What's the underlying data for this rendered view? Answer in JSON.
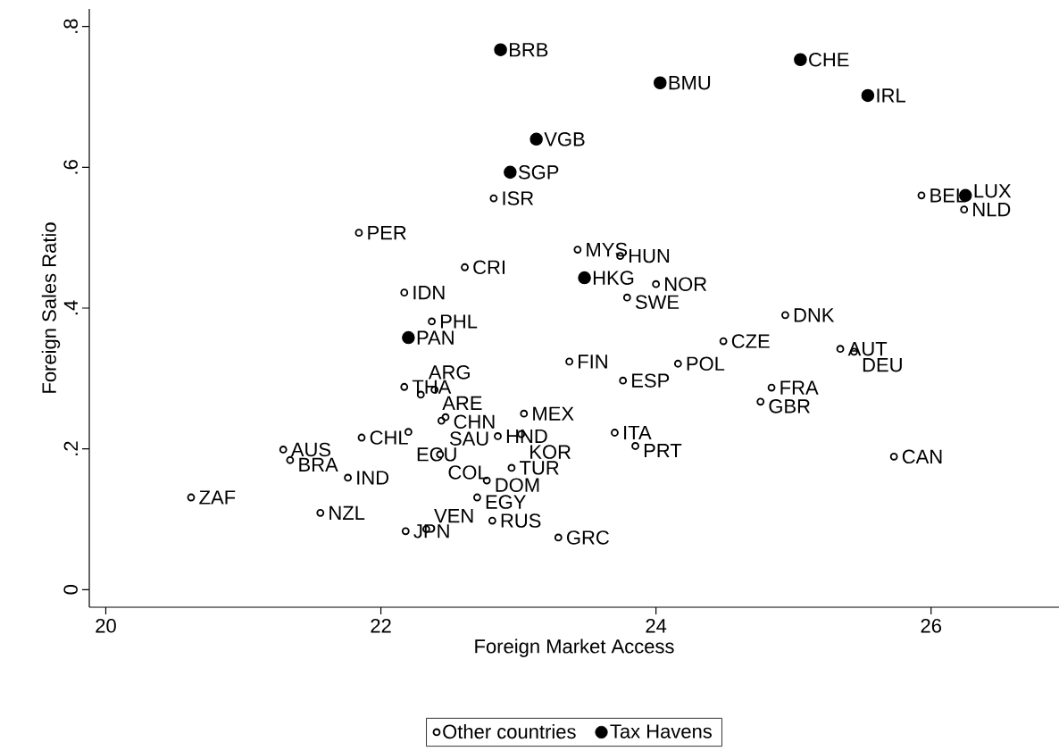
{
  "chart_data": {
    "type": "scatter",
    "xlabel": "Foreign Market Access",
    "ylabel": "Foreign Sales Ratio",
    "xlim": [
      19.88,
      26.93
    ],
    "ylim": [
      -0.025,
      0.825
    ],
    "xticks": [
      20,
      22,
      24,
      26
    ],
    "yticks": [
      0,
      {
        "value": 0.2,
        "label": ".2"
      },
      {
        "value": 0.4,
        "label": ".4"
      },
      {
        "value": 0.6,
        "label": ".6"
      },
      {
        "value": 0.8,
        "label": ".8"
      }
    ],
    "grid": false,
    "legend": "bottom",
    "marker": "circle",
    "series": [
      {
        "name": "Other countries",
        "color": "#000000",
        "x": [
          22.82,
          21.84,
          22.61,
          22.17,
          22.37,
          23.43,
          23.74,
          24.0,
          23.79,
          25.93,
          26.24,
          24.94,
          24.49,
          25.34,
          25.44,
          24.16,
          24.84,
          24.76,
          23.37,
          23.76,
          22.17,
          22.39,
          22.29,
          22.47,
          22.44,
          23.04,
          22.2,
          21.86,
          22.85,
          23.02,
          23.7,
          23.85,
          21.29,
          21.34,
          22.43,
          21.76,
          22.95,
          22.77,
          22.7,
          20.62,
          21.56,
          22.81,
          22.18,
          22.33,
          23.29,
          25.73
        ],
        "values": [
          0.556,
          0.507,
          0.458,
          0.422,
          0.381,
          0.483,
          0.474,
          0.434,
          0.415,
          0.56,
          0.54,
          0.39,
          0.353,
          0.342,
          0.338,
          0.321,
          0.287,
          0.267,
          0.324,
          0.297,
          0.288,
          0.284,
          0.277,
          0.245,
          0.24,
          0.25,
          0.224,
          0.216,
          0.218,
          0.221,
          0.223,
          0.204,
          0.199,
          0.184,
          0.192,
          0.159,
          0.173,
          0.155,
          0.131,
          0.131,
          0.109,
          0.098,
          0.083,
          0.086,
          0.074,
          0.189
        ]
      },
      {
        "name": "Tax Havens",
        "color": "#000000",
        "x": [
          22.87,
          25.05,
          24.03,
          25.54,
          23.13,
          22.94,
          23.48,
          22.2,
          26.25
        ],
        "values": [
          0.767,
          0.753,
          0.72,
          0.702,
          0.64,
          0.593,
          0.443,
          0.358,
          0.56
        ]
      }
    ],
    "annotations": [
      {
        "text": "ISR",
        "x": 22.82,
        "y": 0.556
      },
      {
        "text": "PER",
        "x": 21.84,
        "y": 0.507
      },
      {
        "text": "CRI",
        "x": 22.61,
        "y": 0.458
      },
      {
        "text": "IDN",
        "x": 22.17,
        "y": 0.422
      },
      {
        "text": "PHL",
        "x": 22.37,
        "y": 0.381
      },
      {
        "text": "MYS",
        "x": 23.43,
        "y": 0.483
      },
      {
        "text": "HUN",
        "x": 23.74,
        "y": 0.474
      },
      {
        "text": "NOR",
        "x": 24.0,
        "y": 0.434
      },
      {
        "text": "SWE",
        "x": 23.79,
        "y": 0.415
      },
      {
        "text": "BEL",
        "x": 25.93,
        "y": 0.56
      },
      {
        "text": "NLD",
        "x": 26.24,
        "y": 0.54
      },
      {
        "text": "DNK",
        "x": 24.94,
        "y": 0.39
      },
      {
        "text": "CZE",
        "x": 24.49,
        "y": 0.353
      },
      {
        "text": "AUT",
        "x": 25.34,
        "y": 0.342
      },
      {
        "text": "DEU",
        "x": 25.44,
        "y": 0.338
      },
      {
        "text": "POL",
        "x": 24.16,
        "y": 0.321
      },
      {
        "text": "FRA",
        "x": 24.84,
        "y": 0.287
      },
      {
        "text": "GBR",
        "x": 24.76,
        "y": 0.267
      },
      {
        "text": "FIN",
        "x": 23.37,
        "y": 0.324
      },
      {
        "text": "ESP",
        "x": 23.76,
        "y": 0.297
      },
      {
        "text": "THA",
        "x": 22.17,
        "y": 0.288
      },
      {
        "text": "ARE",
        "x": 22.39,
        "y": 0.284
      },
      {
        "text": "ARG",
        "x": 22.29,
        "y": 0.277
      },
      {
        "text": "CHN",
        "x": 22.47,
        "y": 0.245
      },
      {
        "text": "SAU",
        "x": 22.44,
        "y": 0.24
      },
      {
        "text": "MEX",
        "x": 23.04,
        "y": 0.25
      },
      {
        "text": "ECU",
        "x": 22.2,
        "y": 0.224
      },
      {
        "text": "CHL",
        "x": 21.86,
        "y": 0.216
      },
      {
        "text": "HND",
        "x": 22.85,
        "y": 0.218
      },
      {
        "text": "KOR",
        "x": 23.02,
        "y": 0.221
      },
      {
        "text": "ITA",
        "x": 23.7,
        "y": 0.223
      },
      {
        "text": "PRT",
        "x": 23.85,
        "y": 0.204
      },
      {
        "text": "AUS",
        "x": 21.29,
        "y": 0.199
      },
      {
        "text": "BRA",
        "x": 21.34,
        "y": 0.184
      },
      {
        "text": "COL",
        "x": 22.43,
        "y": 0.192
      },
      {
        "text": "IND",
        "x": 21.76,
        "y": 0.159
      },
      {
        "text": "TUR",
        "x": 22.95,
        "y": 0.173
      },
      {
        "text": "DOM",
        "x": 22.77,
        "y": 0.155
      },
      {
        "text": "EGY",
        "x": 22.7,
        "y": 0.131
      },
      {
        "text": "ZAF",
        "x": 20.62,
        "y": 0.131
      },
      {
        "text": "NZL",
        "x": 21.56,
        "y": 0.109
      },
      {
        "text": "RUS",
        "x": 22.81,
        "y": 0.098
      },
      {
        "text": "JPN",
        "x": 22.18,
        "y": 0.083
      },
      {
        "text": "VEN",
        "x": 22.33,
        "y": 0.086
      },
      {
        "text": "GRC",
        "x": 23.29,
        "y": 0.074
      },
      {
        "text": "CAN",
        "x": 25.73,
        "y": 0.189
      },
      {
        "text": "BRB",
        "x": 22.87,
        "y": 0.767
      },
      {
        "text": "CHE",
        "x": 25.05,
        "y": 0.753
      },
      {
        "text": "BMU",
        "x": 24.03,
        "y": 0.72
      },
      {
        "text": "IRL",
        "x": 25.54,
        "y": 0.702
      },
      {
        "text": "VGB",
        "x": 23.13,
        "y": 0.64
      },
      {
        "text": "SGP",
        "x": 22.94,
        "y": 0.593
      },
      {
        "text": "HKG",
        "x": 23.48,
        "y": 0.443
      },
      {
        "text": "PAN",
        "x": 22.2,
        "y": 0.358
      },
      {
        "text": "LUX",
        "x": 26.25,
        "y": 0.56
      }
    ]
  }
}
